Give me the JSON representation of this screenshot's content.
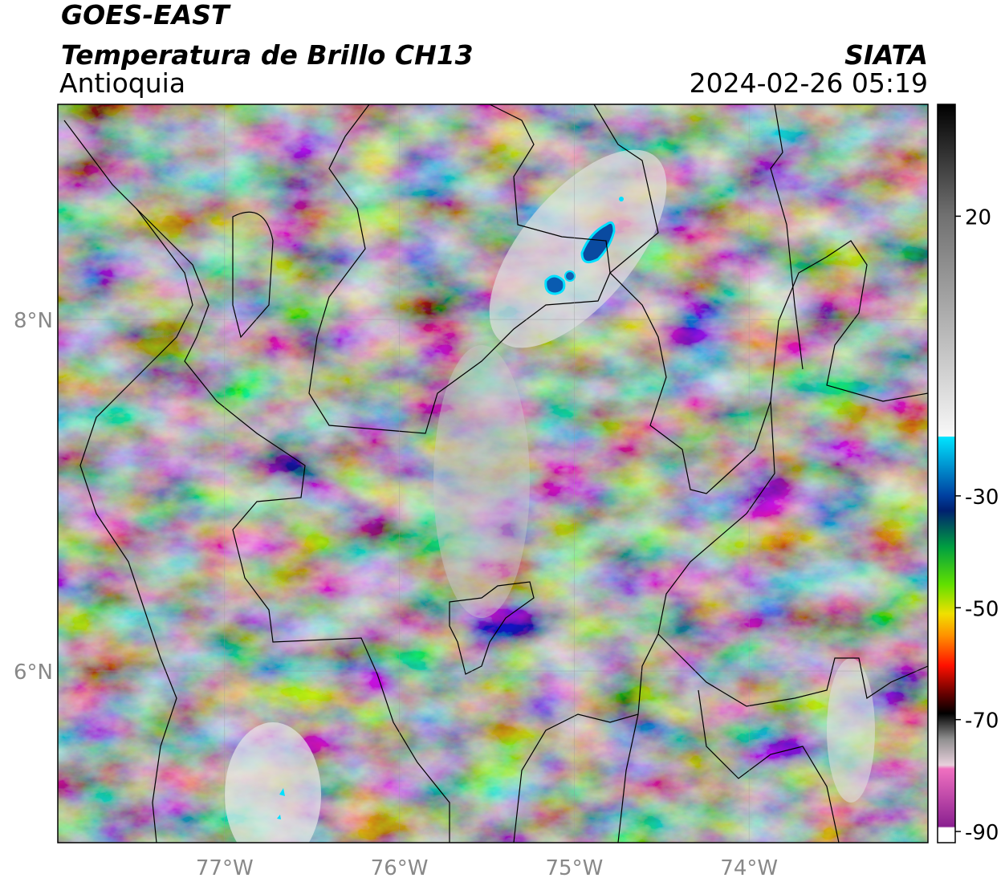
{
  "header": {
    "satellite": "GOES-EAST",
    "product": "Temperatura de Brillo CH13",
    "region": "Antioquia",
    "source": "SIATA",
    "datetime": "2024-02-26 05:19"
  },
  "map": {
    "xlim": [
      -77.954,
      -72.977
    ],
    "ylim": [
      5.023,
      9.224
    ],
    "xticks": [
      {
        "value": -77,
        "label": "77°W"
      },
      {
        "value": -76,
        "label": "76°W"
      },
      {
        "value": -75,
        "label": "75°W"
      },
      {
        "value": -74,
        "label": "74°W"
      }
    ],
    "yticks": [
      {
        "value": 6,
        "label": "6°N"
      },
      {
        "value": 8,
        "label": "8°N"
      }
    ],
    "grid": true
  },
  "colorbar": {
    "lim": [
      -92,
      40
    ],
    "ticks": [
      20,
      -30,
      -50,
      -70,
      -90
    ]
  }
}
